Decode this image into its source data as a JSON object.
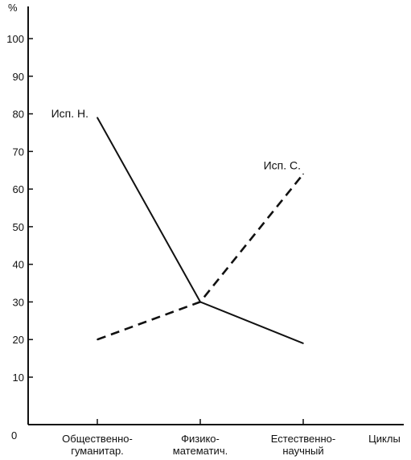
{
  "chart_data": {
    "type": "line",
    "title": "",
    "xlabel": "Циклы",
    "ylabel": "%",
    "origin_label": "0",
    "ylim": [
      0,
      110
    ],
    "yticks": [
      10,
      20,
      30,
      40,
      50,
      60,
      70,
      80,
      90,
      100
    ],
    "categories": [
      [
        "Общественно-",
        "гуманитар."
      ],
      [
        "Физико-",
        "математич."
      ],
      [
        "Естественно-",
        "научный"
      ]
    ],
    "series": [
      {
        "name": "Исп. Н.",
        "values": [
          79,
          30,
          19
        ],
        "style": "solid"
      },
      {
        "name": "Исп. С.",
        "values": [
          20,
          30,
          64
        ],
        "style": "dashed"
      }
    ],
    "grid": false,
    "colors": {
      "line": "#111111",
      "background": "#ffffff"
    }
  }
}
